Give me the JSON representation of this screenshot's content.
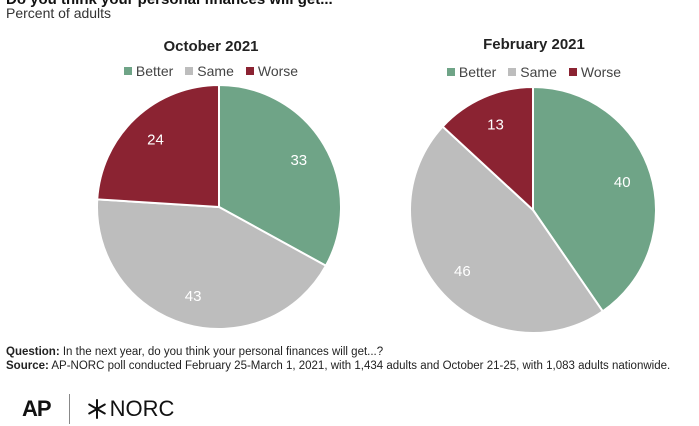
{
  "header": {
    "title": "Do you think your personal finances will get...",
    "subtitle": "Percent of adults"
  },
  "colors": {
    "better": "#6fa487",
    "same": "#bdbdbd",
    "worse": "#8b2332"
  },
  "chart_data": [
    {
      "type": "pie",
      "title": "October 2021",
      "legend": "top",
      "slices": [
        {
          "label": "Better",
          "value": 33
        },
        {
          "label": "Same",
          "value": 43
        },
        {
          "label": "Worse",
          "value": 24
        }
      ]
    },
    {
      "type": "pie",
      "title": "February 2021",
      "legend": "top",
      "slices": [
        {
          "label": "Better",
          "value": 40
        },
        {
          "label": "Same",
          "value": 46
        },
        {
          "label": "Worse",
          "value": 13
        }
      ]
    }
  ],
  "notes": {
    "question_label": "Question:",
    "question_text": " In the next year, do you think your personal finances will get...?",
    "source_label": "Source:",
    "source_text": " AP-NORC poll conducted February 25-March 1, 2021, with 1,434 adults and  October 21-25, with 1,083 adults nationwide."
  },
  "logos": {
    "ap": "AP",
    "norc": "NORC"
  }
}
